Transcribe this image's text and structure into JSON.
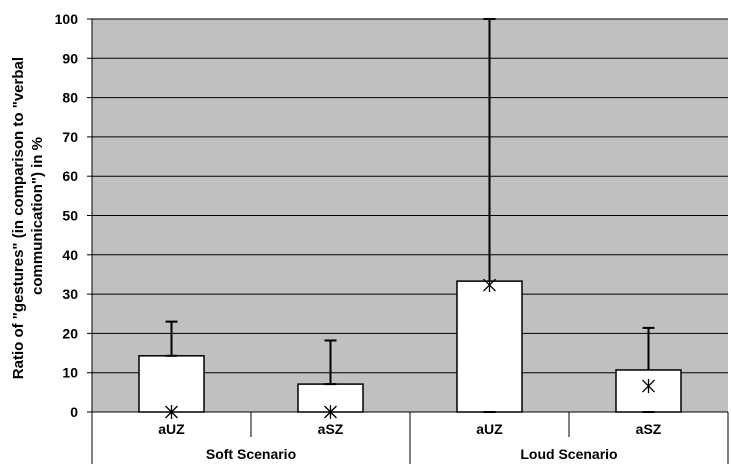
{
  "chart_data": {
    "type": "bar",
    "ylabel": "Ratio of \"gestures\" (in comparison to \"verbal communication\") in %",
    "ylabel_lines": [
      "Ratio of \"gestures\" (in comparison to \"verbal",
      "communication\") in %"
    ],
    "ylim": [
      0,
      100
    ],
    "yticks": [
      "0",
      "10",
      "20",
      "30",
      "40",
      "50",
      "60",
      "70",
      "80",
      "90",
      "100"
    ],
    "grid": true,
    "groups": [
      {
        "label": "Soft Scenario",
        "categories": [
          "aUZ",
          "aSZ"
        ]
      },
      {
        "label": "Loud Scenario",
        "categories": [
          "aUZ",
          "aSZ"
        ]
      }
    ],
    "categories": [
      "aUZ",
      "aSZ",
      "aUZ",
      "aSZ"
    ],
    "values": [
      14.3,
      7.1,
      33.3,
      10.7
    ],
    "error_upper": [
      23,
      18.2,
      100,
      21.4
    ],
    "error_lower": [
      14.3,
      7.1,
      0,
      0
    ],
    "median_markers": [
      0,
      0,
      32.3,
      6.6
    ],
    "colors": {
      "plot_background": "#c0c0c0",
      "bar_fill": "#ffffff",
      "outline": "#000000"
    }
  }
}
